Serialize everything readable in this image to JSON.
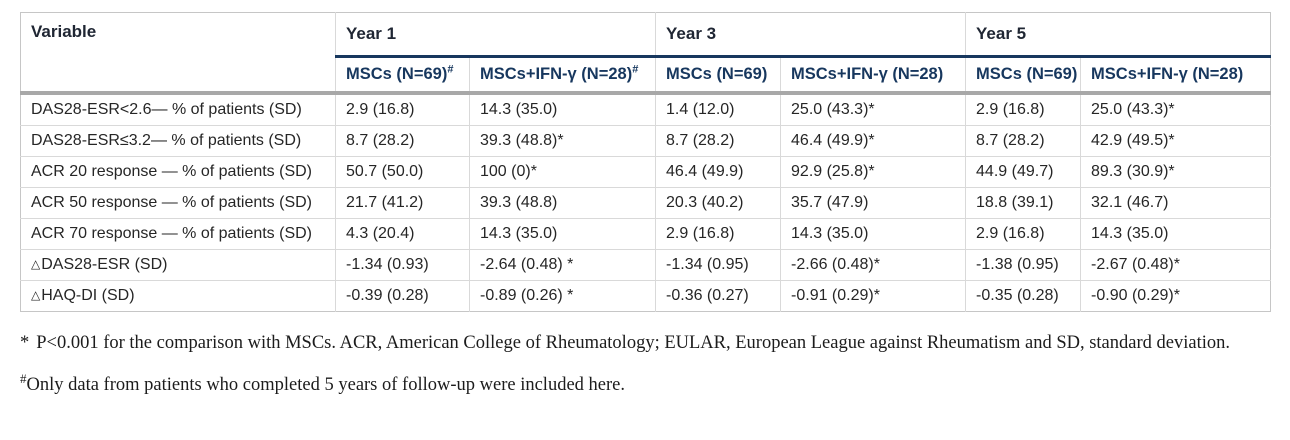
{
  "table": {
    "variable_header": "Variable",
    "groups": [
      {
        "label": "Year 1",
        "cols": [
          {
            "label": "MSCs (N=69)",
            "sup": "#"
          },
          {
            "label": "MSCs+IFN-γ (N=28)",
            "sup": "#"
          }
        ]
      },
      {
        "label": "Year 3",
        "cols": [
          {
            "label": "MSCs (N=69)",
            "sup": ""
          },
          {
            "label": "MSCs+IFN-γ (N=28)",
            "sup": ""
          }
        ]
      },
      {
        "label": "Year 5",
        "cols": [
          {
            "label": "MSCs (N=69)",
            "sup": ""
          },
          {
            "label": "MSCs+IFN-γ (N=28)",
            "sup": ""
          }
        ]
      }
    ],
    "rows": [
      {
        "delta": "",
        "label": "DAS28-ESR<2.6— % of patients (SD)",
        "values": [
          "2.9 (16.8)",
          "14.3 (35.0)",
          "1.4 (12.0)",
          "25.0 (43.3)*",
          "2.9 (16.8)",
          "25.0 (43.3)*"
        ]
      },
      {
        "delta": "",
        "label": "DAS28-ESR≤3.2— % of patients (SD)",
        "values": [
          "8.7 (28.2)",
          "39.3 (48.8)*",
          "8.7 (28.2)",
          "46.4 (49.9)*",
          "8.7 (28.2)",
          "42.9 (49.5)*"
        ]
      },
      {
        "delta": "",
        "label": "ACR 20 response — % of patients (SD)",
        "values": [
          "50.7 (50.0)",
          "100 (0)*",
          "46.4 (49.9)",
          "92.9 (25.8)*",
          "44.9 (49.7)",
          "89.3 (30.9)*"
        ]
      },
      {
        "delta": "",
        "label": "ACR 50 response — % of patients (SD)",
        "values": [
          "21.7 (41.2)",
          "39.3 (48.8)",
          "20.3 (40.2)",
          "35.7 (47.9)",
          "18.8 (39.1)",
          "32.1 (46.7)"
        ]
      },
      {
        "delta": "",
        "label": "ACR 70 response — % of patients (SD)",
        "values": [
          "4.3 (20.4)",
          "14.3 (35.0)",
          "2.9 (16.8)",
          "14.3 (35.0)",
          "2.9 (16.8)",
          "14.3 (35.0)"
        ]
      },
      {
        "delta": "△",
        "label": "DAS28-ESR (SD)",
        "values": [
          "-1.34 (0.93)",
          "-2.64 (0.48) *",
          "-1.34 (0.95)",
          "-2.66 (0.48)*",
          "-1.38 (0.95)",
          "-2.67 (0.48)*"
        ]
      },
      {
        "delta": "△",
        "label": "HAQ-DI (SD)",
        "values": [
          "-0.39 (0.28)",
          "-0.89 (0.26) *",
          "-0.36 (0.27)",
          "-0.91 (0.29)*",
          "-0.35 (0.28)",
          "-0.90 (0.29)*"
        ]
      }
    ]
  },
  "footnotes": [
    {
      "marker": "*",
      "text": "P<0.001 for the comparison with MSCs. ACR, American College of Rheumatology; EULAR, European League against Rheumatism and SD, standard deviation."
    },
    {
      "marker": "#",
      "text": "Only data from patients who completed 5 years of follow-up were included here."
    }
  ],
  "colors": {
    "year_rule": "#17375e",
    "header_band": "#a8a8a8",
    "grid_line": "#d9d9d9",
    "subheader_text": "#17375e",
    "body_text": "#262626"
  }
}
